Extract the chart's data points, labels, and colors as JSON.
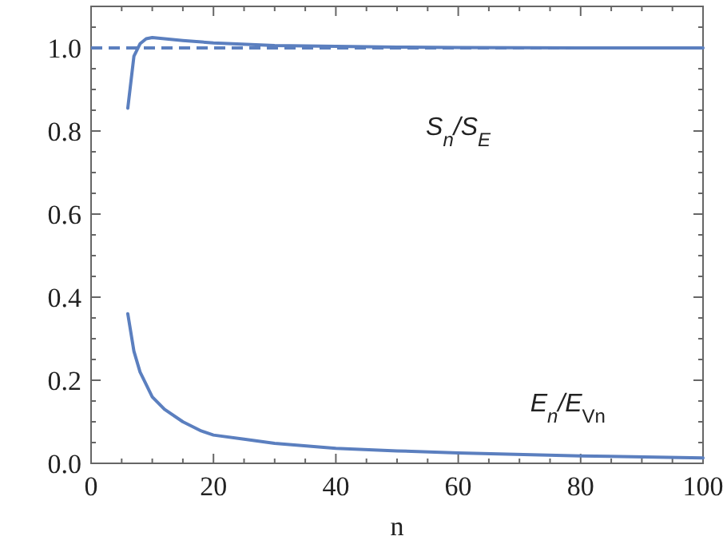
{
  "chart_data": {
    "type": "line",
    "xlabel": "n",
    "xlim": [
      0,
      100
    ],
    "xticks": [
      0,
      20,
      40,
      60,
      80,
      100
    ],
    "ylim": [
      0,
      1.1
    ],
    "yticks": [
      {
        "value": 0,
        "label": "0.0"
      },
      {
        "value": 0.2,
        "label": "0.2"
      },
      {
        "value": 0.4,
        "label": "0.4"
      },
      {
        "value": 0.6,
        "label": "0.6"
      },
      {
        "value": 0.8,
        "label": "0.8"
      },
      {
        "value": 1,
        "label": "1.0"
      }
    ],
    "line_style": "solid",
    "marker": "none",
    "ref_lines": [
      {
        "axis": "y",
        "value": 1,
        "color": "#5b7fbf",
        "line_style": "dashed"
      }
    ],
    "series": [
      {
        "name": "S$_{n}$/S$_{E}$",
        "color": "#5b7fbf",
        "x": [
          6,
          7,
          8,
          9,
          10,
          12,
          15,
          20,
          30,
          40,
          50,
          60,
          80,
          100
        ],
        "values": [
          0.855,
          0.98,
          1.01,
          1.022,
          1.025,
          1.022,
          1.018,
          1.012,
          1.006,
          1.004,
          1.002,
          1.001,
          1.0,
          1.0
        ]
      },
      {
        "name": "E$_{n}$/E$_{Vn}$",
        "color": "#5b7fbf",
        "x": [
          6,
          7,
          8,
          10,
          12,
          15,
          18,
          20,
          25,
          30,
          40,
          50,
          60,
          80,
          100
        ],
        "values": [
          0.36,
          0.27,
          0.22,
          0.16,
          0.13,
          0.1,
          0.078,
          0.068,
          0.058,
          0.048,
          0.036,
          0.03,
          0.025,
          0.018,
          0.013
        ]
      }
    ]
  }
}
